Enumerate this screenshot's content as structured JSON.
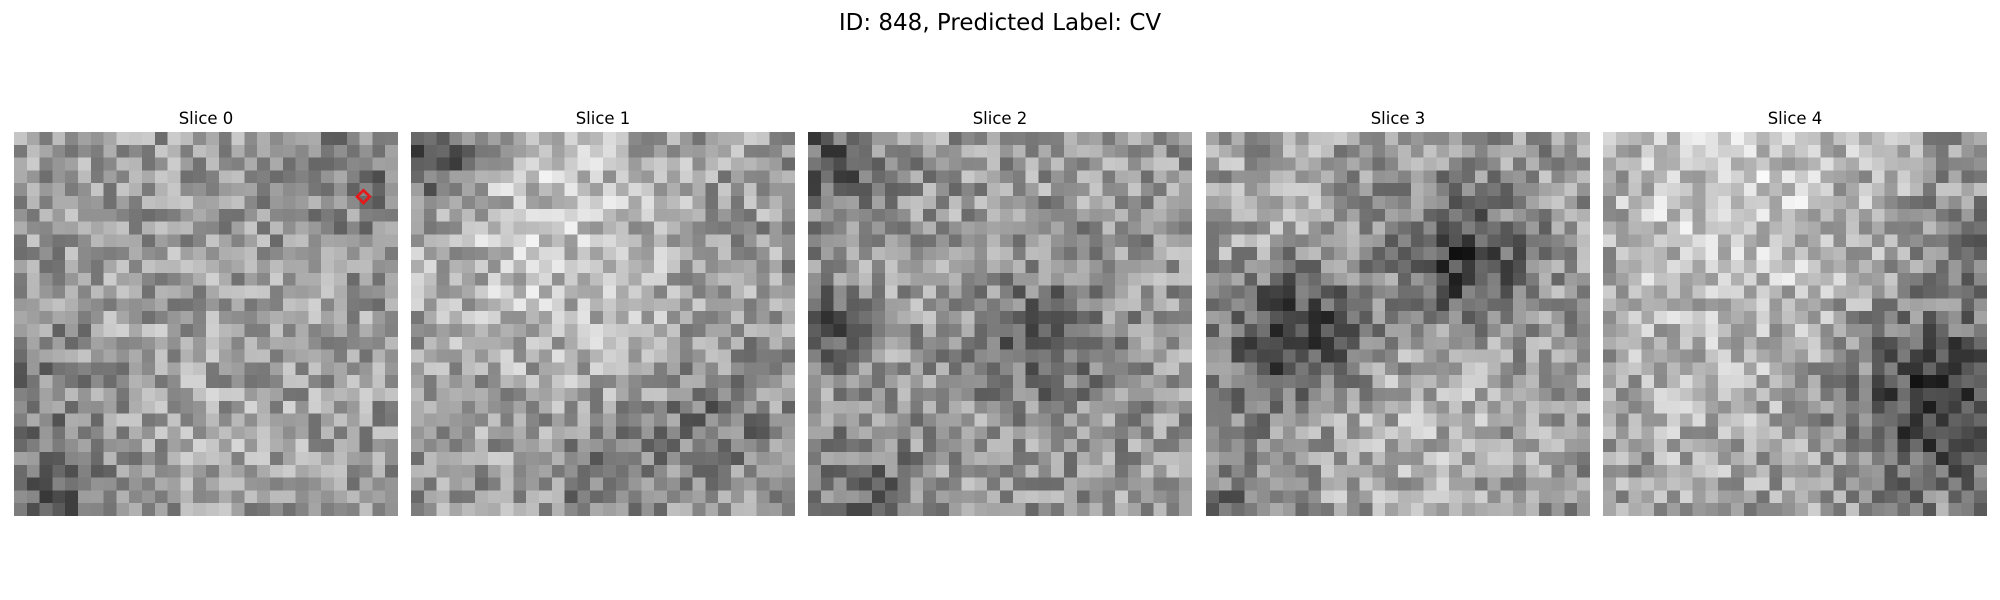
{
  "figure": {
    "title": "ID: 848, Predicted Label: CV"
  },
  "slices": [
    {
      "label": "Slice 0",
      "has_marker": true
    },
    {
      "label": "Slice 1",
      "has_marker": false
    },
    {
      "label": "Slice 2",
      "has_marker": false
    },
    {
      "label": "Slice 3",
      "has_marker": false
    },
    {
      "label": "Slice 4",
      "has_marker": false
    }
  ],
  "grid_size": 30,
  "colors": {
    "background": "#ffffff",
    "marker": "#e31a1c",
    "text": "#000000"
  }
}
